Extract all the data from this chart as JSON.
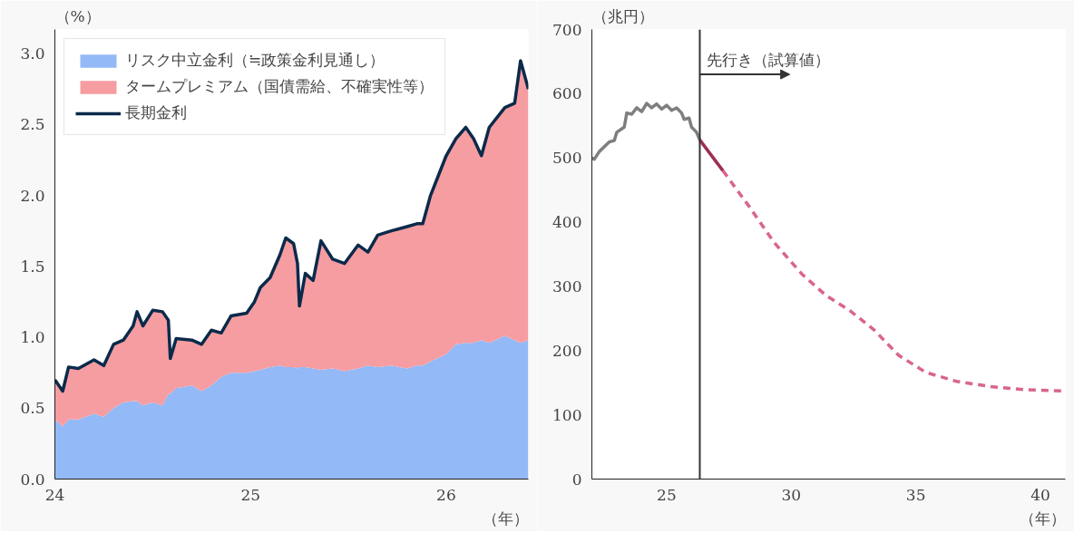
{
  "chart_data": [
    {
      "type": "area",
      "stacked": true,
      "ylabel": "（%）",
      "xlabel": "（年）",
      "legend": "top left",
      "grid": false,
      "marker": "none",
      "x": [
        24.0,
        24.04,
        24.07,
        24.12,
        24.2,
        24.25,
        24.3,
        24.35,
        24.4,
        24.42,
        24.45,
        24.5,
        24.55,
        24.58,
        24.59,
        24.62,
        24.7,
        24.75,
        24.8,
        24.85,
        24.9,
        24.98,
        25.02,
        25.05,
        25.1,
        25.15,
        25.18,
        25.22,
        25.24,
        25.25,
        25.28,
        25.32,
        25.36,
        25.42,
        25.48,
        25.55,
        25.6,
        25.65,
        25.72,
        25.8,
        25.85,
        25.88,
        25.92,
        26.0,
        26.05,
        26.1,
        26.14,
        26.18,
        26.22,
        26.3,
        26.35,
        26.38,
        26.42
      ],
      "xlim": [
        24,
        26.42
      ],
      "xticks": [
        24,
        25,
        26
      ],
      "ylim": [
        0,
        3.17
      ],
      "yticks": [
        {
          "value": 0,
          "label": "0.0"
        },
        0.5,
        {
          "value": 1,
          "label": "1.0"
        },
        1.5,
        {
          "value": 2,
          "label": "2.0"
        },
        2.5,
        {
          "value": 3,
          "label": "3.0"
        }
      ],
      "series": [
        {
          "name": "リスク中立金利（≒政策金利見通し）",
          "type": "area",
          "color": "#93b9f7",
          "values": [
            0.42,
            0.37,
            0.42,
            0.42,
            0.46,
            0.44,
            0.5,
            0.54,
            0.55,
            0.55,
            0.52,
            0.54,
            0.52,
            0.6,
            0.6,
            0.64,
            0.66,
            0.62,
            0.66,
            0.72,
            0.75,
            0.75,
            0.76,
            0.77,
            0.79,
            0.8,
            0.79,
            0.79,
            0.78,
            0.79,
            0.79,
            0.78,
            0.77,
            0.78,
            0.76,
            0.78,
            0.8,
            0.79,
            0.8,
            0.78,
            0.8,
            0.8,
            0.83,
            0.88,
            0.95,
            0.96,
            0.96,
            0.98,
            0.96,
            1.01,
            0.98,
            0.96,
            0.98
          ]
        },
        {
          "name": "タームプレミアム（国債需給、不確実性等）",
          "type": "area",
          "color": "#f69da2",
          "values": [
            0.28,
            0.25,
            0.37,
            0.36,
            0.38,
            0.36,
            0.45,
            0.44,
            0.53,
            0.63,
            0.56,
            0.65,
            0.66,
            0.52,
            0.25,
            0.35,
            0.32,
            0.33,
            0.39,
            0.31,
            0.4,
            0.42,
            0.49,
            0.58,
            0.63,
            0.78,
            0.91,
            0.87,
            0.74,
            0.43,
            0.66,
            0.62,
            0.91,
            0.77,
            0.76,
            0.87,
            0.8,
            0.93,
            0.95,
            1.0,
            1.0,
            1.0,
            1.17,
            1.4,
            1.45,
            1.52,
            1.44,
            1.3,
            1.52,
            1.61,
            1.67,
            1.99,
            1.77
          ]
        },
        {
          "name": "長期金利",
          "type": "line",
          "color": "#0b2a4a",
          "line_style": "solid",
          "values": [
            0.7,
            0.62,
            0.79,
            0.78,
            0.84,
            0.8,
            0.95,
            0.98,
            1.08,
            1.18,
            1.08,
            1.19,
            1.18,
            1.12,
            0.85,
            0.99,
            0.98,
            0.95,
            1.05,
            1.03,
            1.15,
            1.17,
            1.25,
            1.35,
            1.42,
            1.58,
            1.7,
            1.66,
            1.52,
            1.22,
            1.45,
            1.4,
            1.68,
            1.55,
            1.52,
            1.65,
            1.6,
            1.72,
            1.75,
            1.78,
            1.8,
            1.8,
            2.0,
            2.28,
            2.4,
            2.48,
            2.4,
            2.28,
            2.48,
            2.62,
            2.65,
            2.95,
            2.75
          ]
        }
      ]
    },
    {
      "type": "line",
      "ylabel": "（兆円）",
      "xlabel": "（年）",
      "legend": false,
      "grid": false,
      "marker": "none",
      "xlim": [
        22,
        41
      ],
      "xticks": [
        25,
        30,
        35,
        40
      ],
      "ylim": [
        0,
        700
      ],
      "yticks": [
        0,
        100,
        200,
        300,
        400,
        500,
        600,
        700
      ],
      "ref_lines": [
        {
          "axis": "x",
          "value": 26.33,
          "color": "#333333"
        }
      ],
      "annotations": [
        {
          "text": "先行き（試算値）",
          "x": 26.33,
          "y": 630
        }
      ],
      "series": [
        {
          "color": "#7f7f7f",
          "line_style": "solid",
          "x": [
            22.0,
            22.1,
            22.3,
            22.7,
            22.9,
            23.0,
            23.3,
            23.4,
            23.6,
            23.8,
            24.0,
            24.2,
            24.4,
            24.6,
            24.8,
            25.0,
            25.2,
            25.4,
            25.6,
            25.7,
            25.9,
            26.0,
            26.2,
            26.33
          ],
          "values": [
            500,
            498,
            510,
            525,
            527,
            540,
            548,
            570,
            568,
            578,
            572,
            585,
            578,
            584,
            576,
            582,
            574,
            578,
            570,
            560,
            562,
            548,
            540,
            528
          ]
        },
        {
          "color": "#9b3054",
          "line_style": "solid",
          "x": [
            26.33,
            27.26
          ],
          "values": [
            528,
            480
          ]
        },
        {
          "color": "#d9648f",
          "line_style": "dashed",
          "x": [
            27.26,
            28.3,
            29.32,
            30.43,
            31.39,
            32.36,
            33.33,
            34.3,
            35.4,
            36.64,
            38.0,
            39.4,
            41.0
          ],
          "values": [
            480,
            425,
            368,
            319,
            286,
            262,
            232,
            193,
            166,
            152,
            144,
            139,
            137
          ]
        }
      ]
    }
  ]
}
